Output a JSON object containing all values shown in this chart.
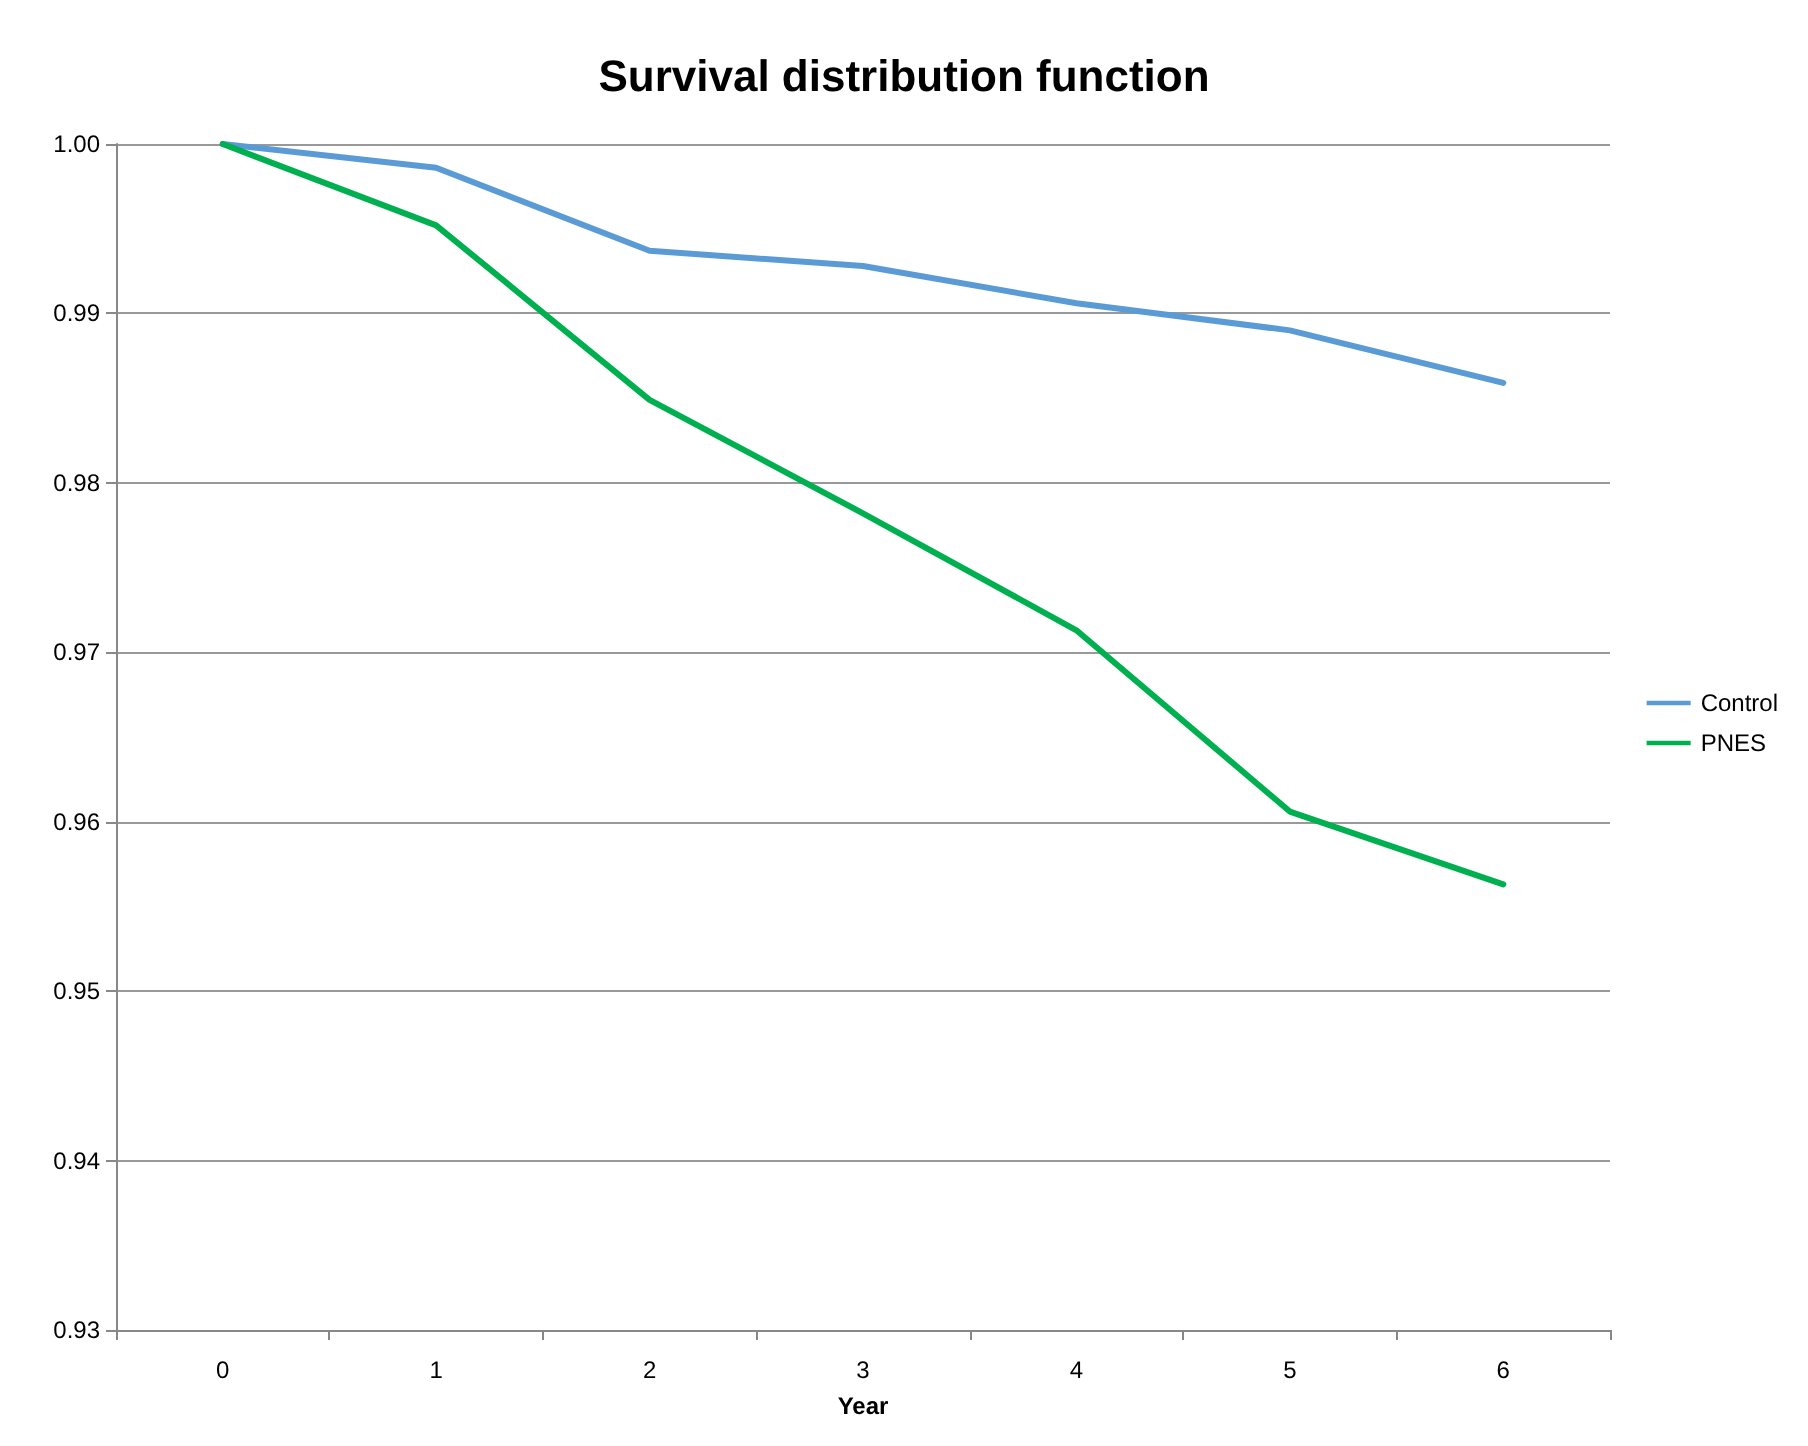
{
  "chart_data": {
    "type": "line",
    "title": "Survival distribution function",
    "xlabel": "Year",
    "categories": [
      "0",
      "1",
      "2",
      "3",
      "4",
      "5",
      "6"
    ],
    "series": [
      {
        "name": "Control",
        "color": "#5b9bd5",
        "values": [
          1.0,
          0.9986,
          0.9937,
          0.9928,
          0.9906,
          0.989,
          0.9859
        ]
      },
      {
        "name": "PNES",
        "color": "#00b050",
        "values": [
          1.0,
          0.9952,
          0.9849,
          0.9782,
          0.9713,
          0.9606,
          0.9563
        ]
      }
    ],
    "ylim": [
      0.93,
      1.0
    ],
    "yticks": [
      0.93,
      0.94,
      0.95,
      0.96,
      0.97,
      0.98,
      0.99,
      {
        "value": 1.0,
        "label": "1.00"
      }
    ],
    "grid": "y",
    "legend": "right",
    "marker": "none",
    "line_style": "solid"
  }
}
